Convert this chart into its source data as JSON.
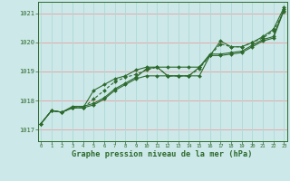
{
  "title": "Graphe pression niveau de la mer (hPa)",
  "x": [
    0,
    1,
    2,
    3,
    4,
    5,
    6,
    7,
    8,
    9,
    10,
    11,
    12,
    13,
    14,
    15,
    16,
    17,
    18,
    19,
    20,
    21,
    22,
    23
  ],
  "series1": [
    1017.2,
    1017.65,
    1017.6,
    1017.75,
    1017.75,
    1017.85,
    1018.05,
    1018.35,
    1018.55,
    1018.75,
    1018.85,
    1018.85,
    1018.85,
    1018.85,
    1018.85,
    1018.85,
    1019.55,
    1019.55,
    1019.6,
    1019.65,
    1019.85,
    1020.05,
    1020.15,
    1021.1
  ],
  "series2": [
    1017.2,
    1017.65,
    1017.6,
    1017.75,
    1017.75,
    1018.35,
    1018.55,
    1018.75,
    1018.85,
    1019.05,
    1019.15,
    1019.15,
    1018.85,
    1018.85,
    1018.85,
    1019.15,
    1019.55,
    1020.05,
    1019.85,
    1019.85,
    1020.0,
    1020.2,
    1020.45,
    1021.2
  ],
  "series3": [
    1017.2,
    1017.65,
    1017.6,
    1017.75,
    1017.75,
    1018.05,
    1018.35,
    1018.65,
    1018.8,
    1018.9,
    1019.05,
    1019.15,
    1018.85,
    1018.85,
    1018.85,
    1019.1,
    1019.55,
    1019.95,
    1019.85,
    1019.85,
    1020.0,
    1020.15,
    1020.4,
    1021.05
  ],
  "series4": [
    1017.2,
    1017.65,
    1017.6,
    1017.8,
    1017.8,
    1017.9,
    1018.1,
    1018.4,
    1018.6,
    1018.8,
    1019.1,
    1019.15,
    1019.15,
    1019.15,
    1019.15,
    1019.15,
    1019.6,
    1019.6,
    1019.65,
    1019.7,
    1019.9,
    1020.1,
    1020.2,
    1021.15
  ],
  "line_color": "#2d6a2d",
  "bg_color": "#cce8e8",
  "grid_color_h": "#e8a0a0",
  "grid_color_v": "#b0d8d8",
  "ylim": [
    1016.6,
    1021.4
  ],
  "yticks": [
    1017,
    1018,
    1019,
    1020,
    1021
  ],
  "marker": "D",
  "markersize": 2.0,
  "linewidth": 0.8
}
